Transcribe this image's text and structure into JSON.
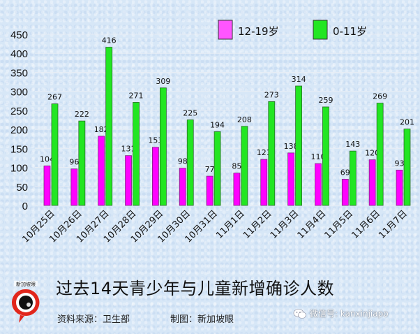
{
  "chart_data": {
    "type": "bar",
    "title": "过去14天青少年与儿童新增确诊人数",
    "xlabel": "",
    "ylabel": "",
    "ylim": [
      0,
      450
    ],
    "yticks": [
      0,
      50,
      100,
      150,
      200,
      250,
      300,
      350,
      400,
      450
    ],
    "grid": true,
    "legend_position": "top-right",
    "categories": [
      "10月25日",
      "10月26日",
      "10月27日",
      "10月28日",
      "10月29日",
      "10月30日",
      "10月31日",
      "11月1日",
      "11月2日",
      "11月3日",
      "11月4日",
      "11月5日",
      "11月6日",
      "11月7日"
    ],
    "series": [
      {
        "name": "12-19岁",
        "color": "#ff00ff",
        "values": [
          104,
          96,
          182,
          131,
          153,
          98,
          77,
          85,
          121,
          138,
          110,
          69,
          120,
          93
        ]
      },
      {
        "name": "0-11岁",
        "color": "#22e622",
        "values": [
          267,
          222,
          416,
          271,
          309,
          225,
          194,
          208,
          273,
          314,
          259,
          143,
          269,
          201
        ]
      }
    ]
  },
  "legend": {
    "items": [
      {
        "label": "12-19岁",
        "color": "#ff55ff"
      },
      {
        "label": "0-11岁",
        "color": "#22e622"
      }
    ]
  },
  "footer": {
    "title": "过去14天青少年与儿童新增确诊人数",
    "source": "资料来源：卫生部",
    "maker": "制图：新加坡眼",
    "wechat": "微信号: kanxinjiapo",
    "logo_text": "新加坡眼"
  }
}
